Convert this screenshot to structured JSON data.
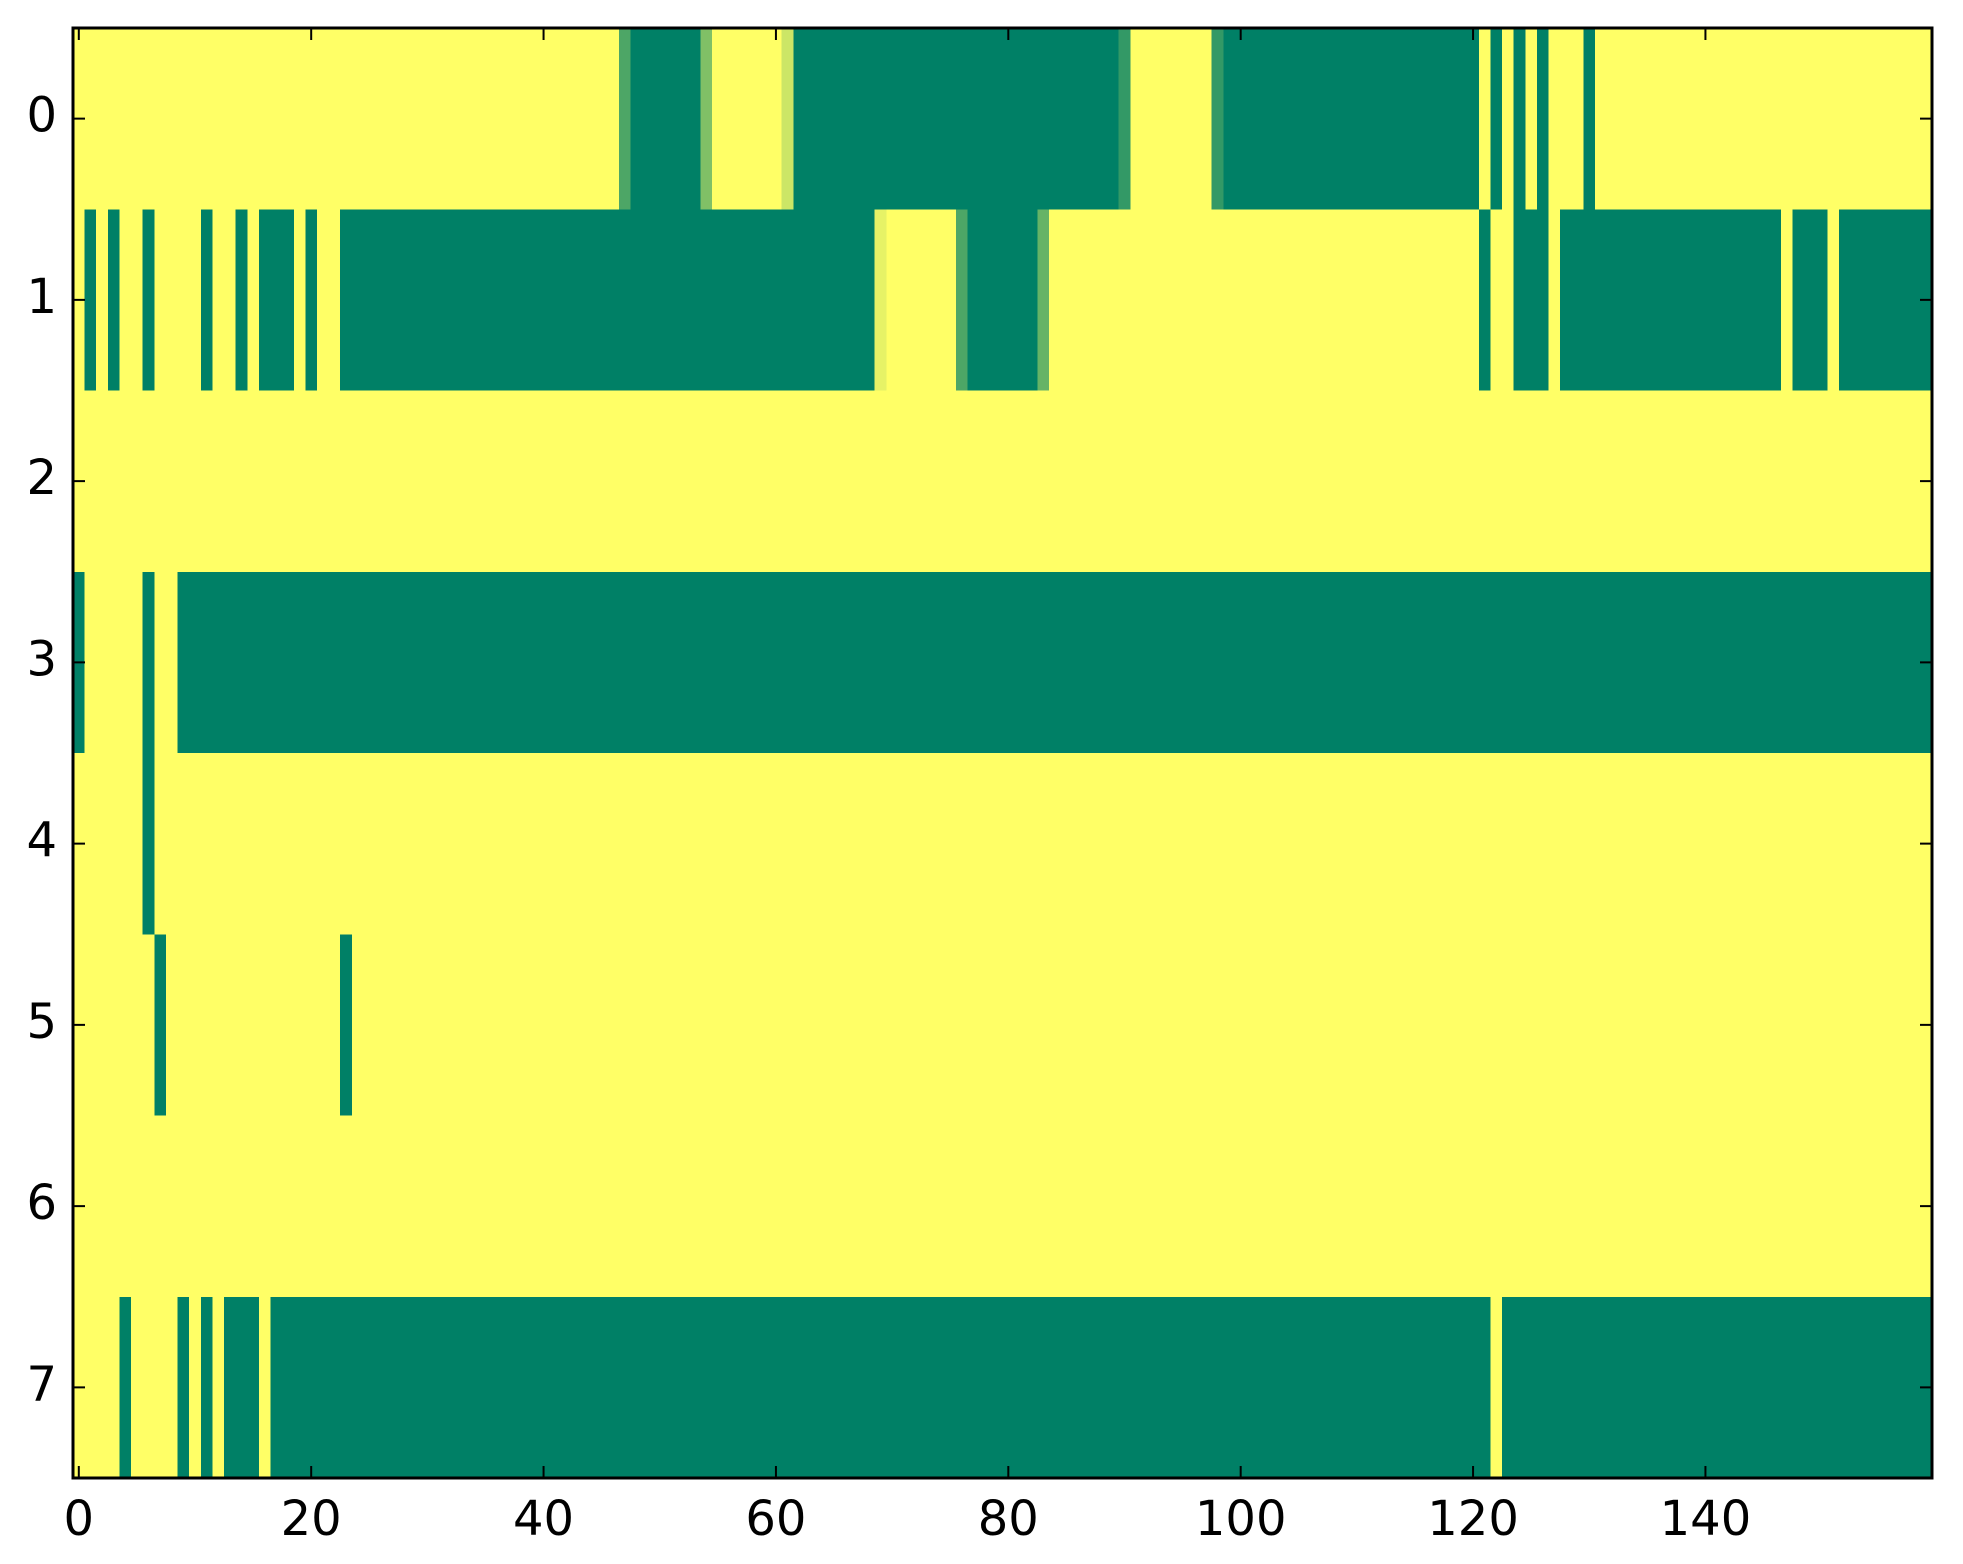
{
  "chart_data": {
    "type": "heatmap",
    "colormap": [
      "#008066",
      "#ffff66"
    ],
    "xlim": [
      -0.5,
      159.5
    ],
    "ylim": [
      7.5,
      -0.5
    ],
    "xticks": [
      0,
      20,
      40,
      60,
      80,
      100,
      120,
      140
    ],
    "yticks": [
      0,
      1,
      2,
      3,
      4,
      5,
      6,
      7
    ],
    "values": [
      [
        1,
        1,
        1,
        1,
        1,
        1,
        1,
        1,
        1,
        1,
        1,
        1,
        1,
        1,
        1,
        1,
        1,
        1,
        1,
        1,
        1,
        1,
        1,
        1,
        1,
        1,
        1,
        1,
        1,
        1,
        1,
        1,
        1,
        1,
        1,
        1,
        1,
        1,
        1,
        1,
        1,
        1,
        1,
        1,
        1,
        1,
        1,
        0.3,
        0,
        0,
        0,
        0,
        0,
        0,
        0.5,
        1,
        1,
        1,
        1,
        1,
        1,
        0.8,
        0,
        0,
        0,
        0,
        0,
        0,
        0,
        0,
        0,
        0,
        0,
        0,
        0,
        0,
        0,
        0,
        0,
        0,
        0,
        0,
        0,
        0,
        0,
        0,
        0,
        0,
        0,
        0,
        0.2,
        1,
        1,
        1,
        1,
        1,
        1,
        1,
        0.2,
        0,
        0,
        0,
        0,
        0,
        0,
        0,
        0,
        0,
        0,
        0,
        0,
        0,
        0,
        0,
        0,
        0,
        0,
        0,
        0,
        0,
        0,
        1,
        0,
        1,
        0,
        1,
        0,
        1,
        1,
        1,
        0,
        1,
        1,
        1,
        1,
        1,
        1,
        1,
        1,
        1,
        1,
        1,
        1,
        1,
        1,
        1,
        1,
        1,
        1,
        1,
        1,
        1,
        1,
        1,
        1,
        1,
        1,
        1,
        1,
        1
      ],
      [
        1,
        0,
        1,
        0,
        1,
        1,
        0,
        1,
        1,
        1,
        1,
        0,
        1,
        1,
        0,
        1,
        0,
        0,
        0,
        1,
        0,
        1,
        1,
        0,
        0,
        0,
        0,
        0,
        0,
        0,
        0,
        0,
        0,
        0,
        0,
        0,
        0,
        0,
        0,
        0,
        0,
        0,
        0,
        0,
        0,
        0,
        0,
        0,
        0,
        0,
        0,
        0,
        0,
        0,
        0,
        0,
        0,
        0,
        0,
        0,
        0,
        0,
        0,
        0,
        0,
        0,
        0,
        0,
        0,
        0.9,
        1,
        1,
        1,
        1,
        1,
        1,
        0.3,
        0,
        0,
        0,
        0,
        0,
        0,
        0.4,
        1,
        1,
        1,
        1,
        1,
        1,
        1,
        1,
        1,
        1,
        1,
        1,
        1,
        1,
        1,
        1,
        1,
        1,
        1,
        1,
        1,
        1,
        1,
        1,
        1,
        1,
        1,
        1,
        1,
        1,
        1,
        1,
        1,
        1,
        1,
        1,
        1,
        0,
        1,
        1,
        0,
        0,
        0,
        1,
        0,
        0,
        0,
        0,
        0,
        0,
        0,
        0,
        0,
        0,
        0,
        0,
        0,
        0,
        0,
        0,
        0,
        0,
        0,
        1,
        0,
        0,
        0,
        1,
        0,
        0,
        0,
        0,
        0,
        0,
        0,
        0
      ],
      [
        1,
        1,
        1,
        1,
        1,
        1,
        1,
        1,
        1,
        1,
        1,
        1,
        1,
        1,
        1,
        1,
        1,
        1,
        1,
        1,
        1,
        1,
        1,
        1,
        1,
        1,
        1,
        1,
        1,
        1,
        1,
        1,
        1,
        1,
        1,
        1,
        1,
        1,
        1,
        1,
        1,
        1,
        1,
        1,
        1,
        1,
        1,
        1,
        1,
        1,
        1,
        1,
        1,
        1,
        1,
        1,
        1,
        1,
        1,
        1,
        1,
        1,
        1,
        1,
        1,
        1,
        1,
        1,
        1,
        1,
        1,
        1,
        1,
        1,
        1,
        1,
        1,
        1,
        1,
        1,
        1,
        1,
        1,
        1,
        1,
        1,
        1,
        1,
        1,
        1,
        1,
        1,
        1,
        1,
        1,
        1,
        1,
        1,
        1,
        1,
        1,
        1,
        1,
        1,
        1,
        1,
        1,
        1,
        1,
        1,
        1,
        1,
        1,
        1,
        1,
        1,
        1,
        1,
        1,
        1,
        1,
        1,
        1,
        1,
        1,
        1,
        1,
        1,
        1,
        1,
        1,
        1,
        1,
        1,
        1,
        1,
        1,
        1,
        1,
        1,
        1,
        1,
        1,
        1,
        1,
        1,
        1,
        1,
        1,
        1,
        1,
        1,
        1,
        1,
        1,
        1,
        1,
        1,
        1,
        1
      ],
      [
        0,
        1,
        1,
        1,
        1,
        1,
        0,
        1,
        1,
        0,
        0,
        0,
        0,
        0,
        0,
        0,
        0,
        0,
        0,
        0,
        0,
        0,
        0,
        0,
        0,
        0,
        0,
        0,
        0,
        0,
        0,
        0,
        0,
        0,
        0,
        0,
        0,
        0,
        0,
        0,
        0,
        0,
        0,
        0,
        0,
        0,
        0,
        0,
        0,
        0,
        0,
        0,
        0,
        0,
        0,
        0,
        0,
        0,
        0,
        0,
        0,
        0,
        0,
        0,
        0,
        0,
        0,
        0,
        0,
        0,
        0,
        0,
        0,
        0,
        0,
        0,
        0,
        0,
        0,
        0,
        0,
        0,
        0,
        0,
        0,
        0,
        0,
        0,
        0,
        0,
        0,
        0,
        0,
        0,
        0,
        0,
        0,
        0,
        0,
        0,
        0,
        0,
        0,
        0,
        0,
        0,
        0,
        0,
        0,
        0,
        0,
        0,
        0,
        0,
        0,
        0,
        0,
        0,
        0,
        0,
        0,
        0,
        0,
        0,
        0,
        0,
        0,
        0,
        0,
        0,
        0,
        0,
        0,
        0,
        0,
        0,
        0,
        0,
        0,
        0,
        0,
        0,
        0,
        0,
        0,
        0,
        0,
        0,
        0,
        0,
        0,
        0,
        0,
        0,
        0,
        0,
        0,
        0,
        0,
        0
      ],
      [
        1,
        1,
        1,
        1,
        1,
        1,
        0,
        1,
        1,
        1,
        1,
        1,
        1,
        1,
        1,
        1,
        1,
        1,
        1,
        1,
        1,
        1,
        1,
        1,
        1,
        1,
        1,
        1,
        1,
        1,
        1,
        1,
        1,
        1,
        1,
        1,
        1,
        1,
        1,
        1,
        1,
        1,
        1,
        1,
        1,
        1,
        1,
        1,
        1,
        1,
        1,
        1,
        1,
        1,
        1,
        1,
        1,
        1,
        1,
        1,
        1,
        1,
        1,
        1,
        1,
        1,
        1,
        1,
        1,
        1,
        1,
        1,
        1,
        1,
        1,
        1,
        1,
        1,
        1,
        1,
        1,
        1,
        1,
        1,
        1,
        1,
        1,
        1,
        1,
        1,
        1,
        1,
        1,
        1,
        1,
        1,
        1,
        1,
        1,
        1,
        1,
        1,
        1,
        1,
        1,
        1,
        1,
        1,
        1,
        1,
        1,
        1,
        1,
        1,
        1,
        1,
        1,
        1,
        1,
        1,
        1,
        1,
        1,
        1,
        1,
        1,
        1,
        1,
        1,
        1,
        1,
        1,
        1,
        1,
        1,
        1,
        1,
        1,
        1,
        1,
        1,
        1,
        1,
        1,
        1,
        1,
        1,
        1,
        1,
        1,
        1,
        1,
        1,
        1,
        1,
        1,
        1,
        1,
        1,
        1
      ],
      [
        1,
        1,
        1,
        1,
        1,
        1,
        1,
        0,
        1,
        1,
        1,
        1,
        1,
        1,
        1,
        1,
        1,
        1,
        1,
        1,
        1,
        1,
        1,
        0,
        1,
        1,
        1,
        1,
        1,
        1,
        1,
        1,
        1,
        1,
        1,
        1,
        1,
        1,
        1,
        1,
        1,
        1,
        1,
        1,
        1,
        1,
        1,
        1,
        1,
        1,
        1,
        1,
        1,
        1,
        1,
        1,
        1,
        1,
        1,
        1,
        1,
        1,
        1,
        1,
        1,
        1,
        1,
        1,
        1,
        1,
        1,
        1,
        1,
        1,
        1,
        1,
        1,
        1,
        1,
        1,
        1,
        1,
        1,
        1,
        1,
        1,
        1,
        1,
        1,
        1,
        1,
        1,
        1,
        1,
        1,
        1,
        1,
        1,
        1,
        1,
        1,
        1,
        1,
        1,
        1,
        1,
        1,
        1,
        1,
        1,
        1,
        1,
        1,
        1,
        1,
        1,
        1,
        1,
        1,
        1,
        1,
        1,
        1,
        1,
        1,
        1,
        1,
        1,
        1,
        1,
        1,
        1,
        1,
        1,
        1,
        1,
        1,
        1,
        1,
        1,
        1,
        1,
        1,
        1,
        1,
        1,
        1,
        1,
        1,
        1,
        1,
        1,
        1,
        1,
        1,
        1,
        1,
        1,
        1,
        1
      ],
      [
        1,
        1,
        1,
        1,
        1,
        1,
        1,
        1,
        1,
        1,
        1,
        1,
        1,
        1,
        1,
        1,
        1,
        1,
        1,
        1,
        1,
        1,
        1,
        1,
        1,
        1,
        1,
        1,
        1,
        1,
        1,
        1,
        1,
        1,
        1,
        1,
        1,
        1,
        1,
        1,
        1,
        1,
        1,
        1,
        1,
        1,
        1,
        1,
        1,
        1,
        1,
        1,
        1,
        1,
        1,
        1,
        1,
        1,
        1,
        1,
        1,
        1,
        1,
        1,
        1,
        1,
        1,
        1,
        1,
        1,
        1,
        1,
        1,
        1,
        1,
        1,
        1,
        1,
        1,
        1,
        1,
        1,
        1,
        1,
        1,
        1,
        1,
        1,
        1,
        1,
        1,
        1,
        1,
        1,
        1,
        1,
        1,
        1,
        1,
        1,
        1,
        1,
        1,
        1,
        1,
        1,
        1,
        1,
        1,
        1,
        1,
        1,
        1,
        1,
        1,
        1,
        1,
        1,
        1,
        1,
        1,
        1,
        1,
        1,
        1,
        1,
        1,
        1,
        1,
        1,
        1,
        1,
        1,
        1,
        1,
        1,
        1,
        1,
        1,
        1,
        1,
        1,
        1,
        1,
        1,
        1,
        1,
        1,
        1,
        1,
        1,
        1,
        1,
        1,
        1,
        1,
        1,
        1,
        1,
        1
      ],
      [
        1,
        1,
        1,
        1,
        0,
        1,
        1,
        1,
        1,
        0,
        1,
        0,
        1,
        0,
        0,
        0,
        1,
        0,
        0,
        0,
        0,
        0,
        0,
        0,
        0,
        0,
        0,
        0,
        0,
        0,
        0,
        0,
        0,
        0,
        0,
        0,
        0,
        0,
        0,
        0,
        0,
        0,
        0,
        0,
        0,
        0,
        0,
        0,
        0,
        0,
        0,
        0,
        0,
        0,
        0,
        0,
        0,
        0,
        0,
        0,
        0,
        0,
        0,
        0,
        0,
        0,
        0,
        0,
        0,
        0,
        0,
        0,
        0,
        0,
        0,
        0,
        0,
        0,
        0,
        0,
        0,
        0,
        0,
        0,
        0,
        0,
        0,
        0,
        0,
        0,
        0,
        0,
        0,
        0,
        0,
        0,
        0,
        0,
        0,
        0,
        0,
        0,
        0,
        0,
        0,
        0,
        0,
        0,
        0,
        0,
        0,
        0,
        0,
        0,
        0,
        0,
        0,
        0,
        0,
        0,
        0,
        0,
        1,
        0,
        0,
        0,
        0,
        0,
        0,
        0,
        0,
        0,
        0,
        0,
        0,
        0,
        0,
        0,
        0,
        0,
        0,
        0,
        0,
        0,
        0,
        0,
        0,
        0,
        0,
        0,
        0,
        0,
        0,
        0,
        0,
        0,
        0,
        0,
        0,
        0
      ]
    ]
  }
}
